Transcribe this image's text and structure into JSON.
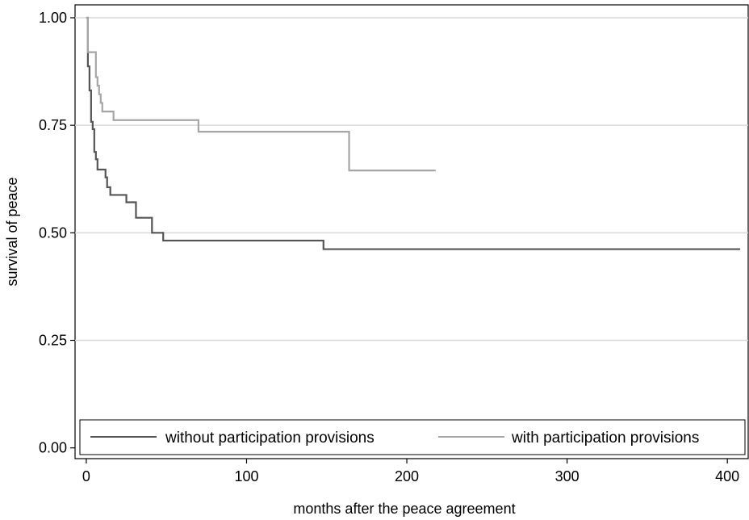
{
  "chart_data": {
    "type": "line",
    "step": true,
    "title": "",
    "xlabel": "months after the peace agreement",
    "ylabel": "survival of peace",
    "xlim": [
      -7,
      413
    ],
    "ylim": [
      -0.025,
      1.03
    ],
    "xticks": [
      0,
      100,
      200,
      300,
      400
    ],
    "xtick_labels": [
      "0",
      "100",
      "200",
      "300",
      "400"
    ],
    "yticks": [
      0,
      0.25,
      0.5,
      0.75,
      1.0
    ],
    "ytick_labels": [
      "0.00",
      "0.25",
      "0.50",
      "0.75",
      "1.00"
    ],
    "grid": "horizontal",
    "legend_position": "bottom-inside",
    "series": [
      {
        "name": "without participation provisions",
        "color": "#555555",
        "x": [
          0,
          1,
          2,
          3,
          4,
          5,
          6,
          7,
          9,
          12,
          13,
          15,
          25,
          31,
          41,
          48,
          148,
          408
        ],
        "y": [
          1.0,
          0.887,
          0.831,
          0.758,
          0.741,
          0.688,
          0.671,
          0.647,
          0.647,
          0.629,
          0.606,
          0.588,
          0.571,
          0.535,
          0.5,
          0.482,
          0.462,
          0.462
        ]
      },
      {
        "name": "with participation provisions",
        "color": "#a6a6a6",
        "x": [
          0,
          1,
          6,
          7,
          8,
          9,
          10,
          17,
          70,
          164,
          218
        ],
        "y": [
          1.0,
          0.92,
          0.862,
          0.842,
          0.822,
          0.802,
          0.782,
          0.762,
          0.735,
          0.645,
          0.645
        ]
      }
    ]
  }
}
